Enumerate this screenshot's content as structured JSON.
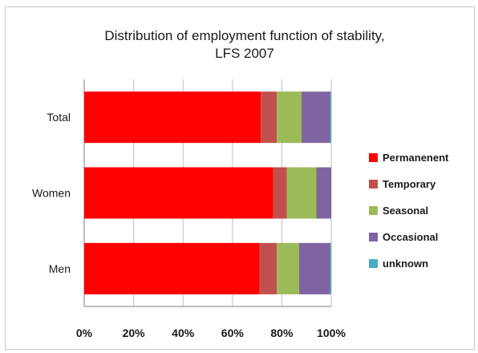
{
  "chart_data": {
    "type": "bar",
    "orientation": "horizontal",
    "stacked": true,
    "percent_stacked": true,
    "title": [
      "Distribution of employment function of stability,",
      "LFS 2007"
    ],
    "categories": [
      "Total",
      "Women",
      "Men"
    ],
    "series": [
      {
        "name": "Permanenent",
        "color": "#ff0000",
        "values": [
          71.5,
          76.5,
          71.0
        ]
      },
      {
        "name": "Temporary",
        "color": "#c0504d",
        "values": [
          6.5,
          5.5,
          7.0
        ]
      },
      {
        "name": "Seasonal",
        "color": "#9bbb59",
        "values": [
          10.0,
          12.0,
          9.0
        ]
      },
      {
        "name": "Occasional",
        "color": "#8064a2",
        "values": [
          11.5,
          6.0,
          12.5
        ]
      },
      {
        "name": "unknown",
        "color": "#4bacc6",
        "values": [
          0.5,
          0.0,
          0.5
        ]
      }
    ],
    "x_ticks": [
      "0%",
      "20%",
      "40%",
      "60%",
      "80%",
      "100%"
    ],
    "xlim": [
      0,
      100
    ],
    "grid": "vertical",
    "legend_position": "right"
  }
}
